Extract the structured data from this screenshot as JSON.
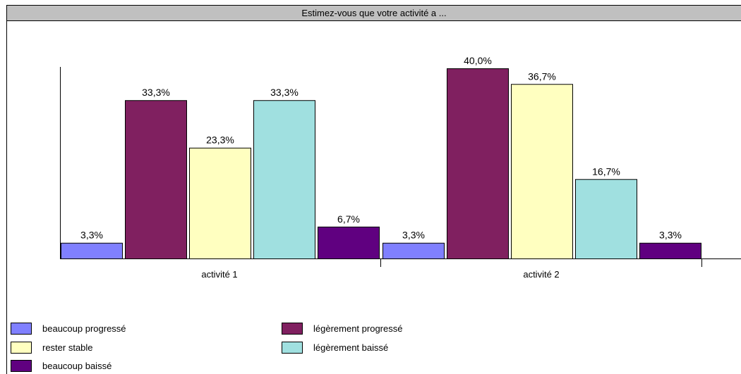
{
  "chart_data": {
    "type": "bar",
    "title": "Estimez-vous que votre activité a ...",
    "categories": [
      "activité 1",
      "activité 2"
    ],
    "series": [
      {
        "name": "beaucoup progressé",
        "values": [
          3.3,
          3.3
        ],
        "labels": [
          "3,3%",
          "3,3%"
        ],
        "color": "#8080ff"
      },
      {
        "name": "légèrement progressé",
        "values": [
          33.3,
          40.0
        ],
        "labels": [
          "33,3%",
          "40,0%"
        ],
        "color": "#802060"
      },
      {
        "name": "rester stable",
        "values": [
          23.3,
          36.7
        ],
        "labels": [
          "23,3%",
          "36,7%"
        ],
        "color": "#ffffc0"
      },
      {
        "name": "légèrement baissé",
        "values": [
          33.3,
          16.7
        ],
        "labels": [
          "33,3%",
          "16,7%"
        ],
        "color": "#a0e0e0"
      },
      {
        "name": "beaucoup baissé",
        "values": [
          6.7,
          3.3
        ],
        "labels": [
          "6,7%",
          "3,3%"
        ],
        "color": "#600080"
      }
    ],
    "ylim": [
      0,
      47
    ],
    "xlabel": "",
    "ylabel": "",
    "grid": false,
    "legend_position": "bottom"
  }
}
